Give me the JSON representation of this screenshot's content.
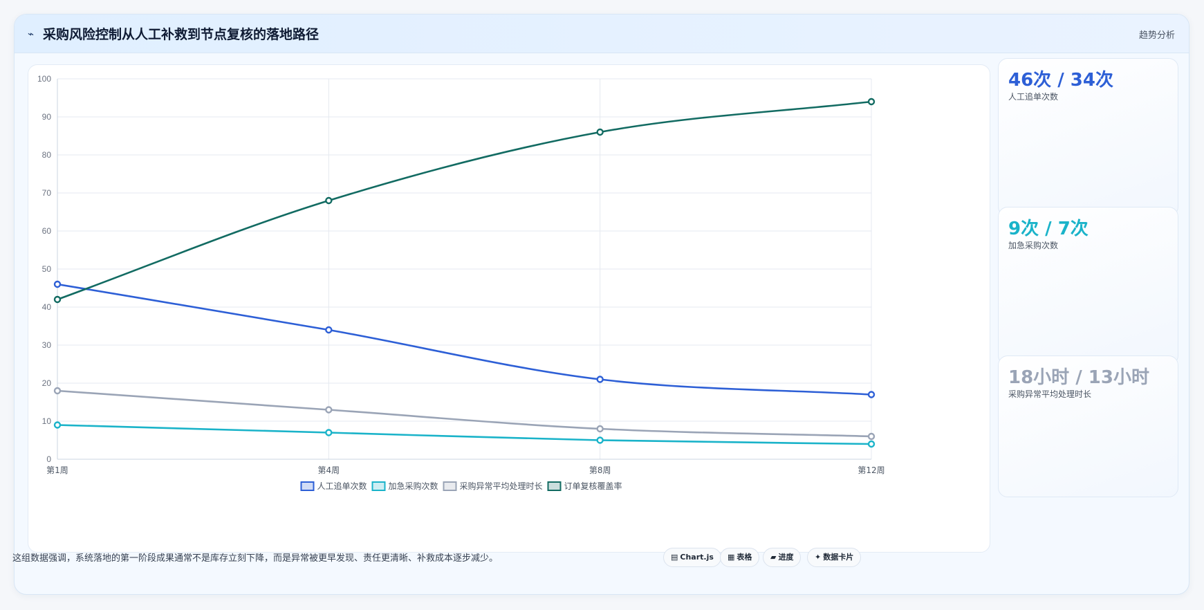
{
  "header": {
    "icon": "⌁",
    "title": "采购风险控制从人工补救到节点复核的落地路径",
    "tag": "趋势分析"
  },
  "metrics": [
    {
      "value": "46次 / 34次",
      "label": "人工追单次数",
      "color": "#2d5fd6"
    },
    {
      "value": "9次 / 7次",
      "label": "加急采购次数",
      "color": "#1ab3c9"
    },
    {
      "value": "18小时 / 13小时",
      "label": "采购异常平均处理时长",
      "color": "#9aa4b6"
    }
  ],
  "footer": {
    "note": "这组数据强调，系统落地的第一阶段成果通常不是库存立刻下降，而是异常被更早发现、责任更清晰、补救成本逐步减少。",
    "buttons": [
      {
        "icon": "▤",
        "label": "Chart.js"
      },
      {
        "icon": "▦",
        "label": "表格"
      },
      {
        "icon": "▰",
        "label": "进度"
      },
      {
        "icon": "✦",
        "label": "数据卡片"
      }
    ]
  },
  "chart_data": {
    "type": "line",
    "categories": [
      "第1周",
      "第4周",
      "第8周",
      "第12周"
    ],
    "ylim": [
      0,
      100
    ],
    "yticks": [
      0,
      10,
      20,
      30,
      40,
      50,
      60,
      70,
      80,
      90,
      100
    ],
    "grid": true,
    "legend_position": "bottom",
    "series": [
      {
        "name": "人工追单次数",
        "values": [
          46,
          34,
          21,
          17
        ],
        "color": "#2d5fd6"
      },
      {
        "name": "加急采购次数",
        "values": [
          9,
          7,
          5,
          4
        ],
        "color": "#1ab3c9"
      },
      {
        "name": "采购异常平均处理时长",
        "values": [
          18,
          13,
          8,
          6
        ],
        "color": "#9aa4b6"
      },
      {
        "name": "订单复核覆盖率",
        "values": [
          42,
          68,
          86,
          94
        ],
        "color": "#126b62"
      }
    ]
  }
}
